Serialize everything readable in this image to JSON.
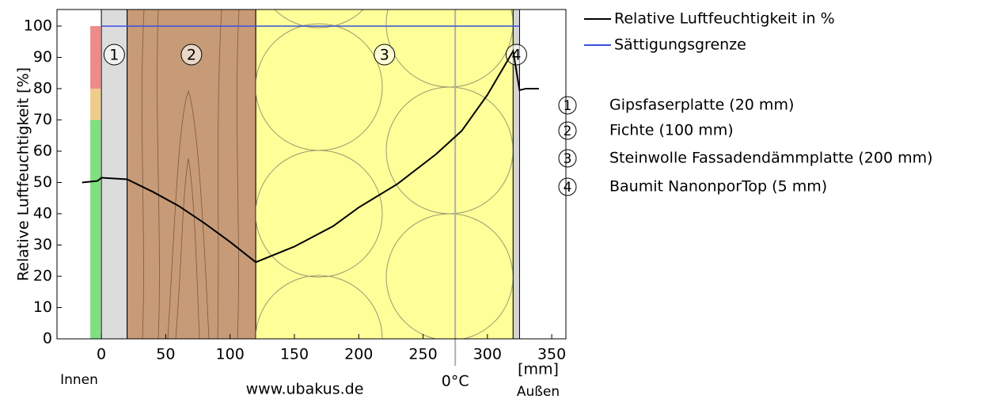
{
  "chart_data": {
    "type": "line",
    "ylabel": "Relative Luftfeuchtigkeit [%]",
    "xlim": [
      -34.5,
      361
    ],
    "ylim": [
      0,
      105.3
    ],
    "xticks": [
      0,
      50,
      100,
      150,
      200,
      250,
      300,
      350
    ],
    "yticks": [
      0,
      10,
      20,
      30,
      40,
      50,
      60,
      70,
      80,
      90,
      100
    ],
    "xunit": "[mm]",
    "inside": "Innen",
    "outside": "Außen",
    "watermark": "www.ubakus.de",
    "frost": {
      "x": 275,
      "label": "0°C",
      "color": "#b0b0b0"
    },
    "zones": [
      {
        "from": 0,
        "to": 70,
        "color": "#7ee07e"
      },
      {
        "from": 70,
        "to": 80,
        "color": "#f0cc8a"
      },
      {
        "from": 80,
        "to": 100,
        "color": "#ee8a8a"
      }
    ],
    "layers": [
      {
        "label": "1",
        "name": "Gipsfaserplatte (20 mm)",
        "start": 0,
        "end": 20,
        "color": "#dcdcdc"
      },
      {
        "label": "2",
        "name": "Fichte (100 mm)",
        "start": 20,
        "end": 120,
        "color": "#c79b77"
      },
      {
        "label": "3",
        "name": "Steinwolle Fassadendämmplatte (200 mm)",
        "start": 120,
        "end": 320,
        "color": "#ffff99"
      },
      {
        "label": "4",
        "name": "Baumit NanonporTop (5 mm)",
        "start": 320,
        "end": 325,
        "color": "#d4d4d4"
      }
    ],
    "series": [
      {
        "name": "Relative Luftfeuchtigkeit in %",
        "color": "#000000",
        "x": [
          -15,
          -3,
          0,
          20,
          40,
          60,
          80,
          100,
          120,
          150,
          180,
          200,
          230,
          260,
          280,
          300,
          320,
          325,
          330,
          340
        ],
        "values": [
          50,
          50.5,
          51.5,
          51,
          47,
          42.5,
          37,
          31,
          24.5,
          29.5,
          36,
          42,
          49.5,
          59,
          66.5,
          78,
          92,
          79.5,
          80,
          80
        ]
      },
      {
        "name": "Sättigungsgrenze",
        "color": "#3a4fe0",
        "x": [
          0,
          325
        ],
        "values": [
          100,
          100
        ]
      }
    ]
  }
}
